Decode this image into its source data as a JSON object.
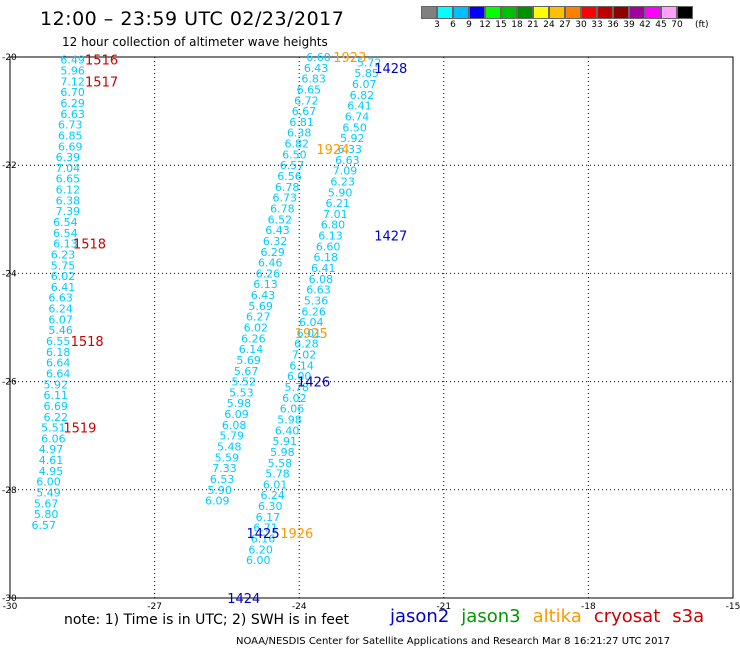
{
  "header": {
    "title": "12:00 – 23:59 UTC 02/23/2017",
    "subtitle": "12 hour collection of altimeter wave heights"
  },
  "colorbar": {
    "colors": [
      "#808080",
      "#00ffff",
      "#00bfff",
      "#0000ff",
      "#00ff00",
      "#00c000",
      "#009000",
      "#ffff00",
      "#ffc000",
      "#ff8000",
      "#ff0000",
      "#c00000",
      "#900000",
      "#a000a0",
      "#ff00ff",
      "#ffa0ff",
      "#000000"
    ],
    "labels": [
      "3",
      "6",
      "9",
      "12",
      "15",
      "18",
      "21",
      "24",
      "27",
      "30",
      "33",
      "36",
      "39",
      "42",
      "45",
      "70"
    ],
    "unit": "(ft)"
  },
  "note": "note: 1) Time is in UTC; 2) SWH is in feet",
  "credit": "NOAA/NESDIS Center for Satellite Applications and Research    Mar  8 16:21:27 UTC 2017",
  "legend": [
    {
      "name": "jason2",
      "color": "#0000cc"
    },
    {
      "name": "jason3",
      "color": "#009900"
    },
    {
      "name": "altika",
      "color": "#ff9900"
    },
    {
      "name": "cryosat",
      "color": "#cc0000"
    },
    {
      "name": "s3a",
      "color": "#cc0000"
    }
  ],
  "chart_data": {
    "type": "scatter",
    "title": "12:00 – 23:59 UTC 02/23/2017",
    "subtitle": "12 hour collection of altimeter wave heights",
    "xlim": [
      -30,
      -15
    ],
    "ylim": [
      -30,
      -20
    ],
    "xticks": [
      -30,
      -27,
      -24,
      -21,
      -18,
      -15
    ],
    "yticks": [
      -20,
      -22,
      -24,
      -26,
      -28,
      -30
    ],
    "grid": true,
    "point_color": "#00ccff",
    "tracks": [
      {
        "name": "cryosat track",
        "color": "#00ccff",
        "points": [
          {
            "x": -28.7,
            "y": -20.05,
            "v": "6.49"
          },
          {
            "x": -28.7,
            "y": -20.25,
            "v": "5.96"
          },
          {
            "x": -28.7,
            "y": -20.45,
            "v": "7.12"
          },
          {
            "x": -28.7,
            "y": -20.65,
            "v": "6.70"
          },
          {
            "x": -28.7,
            "y": -20.85,
            "v": "6.29"
          },
          {
            "x": -28.7,
            "y": -21.05,
            "v": "6.63"
          },
          {
            "x": -28.75,
            "y": -21.25,
            "v": "6.73"
          },
          {
            "x": -28.75,
            "y": -21.45,
            "v": "6.85"
          },
          {
            "x": -28.75,
            "y": -21.65,
            "v": "6.69"
          },
          {
            "x": -28.8,
            "y": -21.85,
            "v": "6.39"
          },
          {
            "x": -28.8,
            "y": -22.05,
            "v": "7.04"
          },
          {
            "x": -28.8,
            "y": -22.25,
            "v": "6.65"
          },
          {
            "x": -28.8,
            "y": -22.45,
            "v": "6.12"
          },
          {
            "x": -28.8,
            "y": -22.65,
            "v": "6.38"
          },
          {
            "x": -28.8,
            "y": -22.85,
            "v": "7.39"
          },
          {
            "x": -28.85,
            "y": -23.05,
            "v": "6.54"
          },
          {
            "x": -28.85,
            "y": -23.25,
            "v": "6.54"
          },
          {
            "x": -28.85,
            "y": -23.45,
            "v": "6.13"
          },
          {
            "x": -28.9,
            "y": -23.65,
            "v": "6.23"
          },
          {
            "x": -28.9,
            "y": -23.85,
            "v": "5.75"
          },
          {
            "x": -28.9,
            "y": -24.05,
            "v": "6.02"
          },
          {
            "x": -28.9,
            "y": -24.25,
            "v": "6.41"
          },
          {
            "x": -28.95,
            "y": -24.45,
            "v": "6.63"
          },
          {
            "x": -28.95,
            "y": -24.65,
            "v": "6.24"
          },
          {
            "x": -28.95,
            "y": -24.85,
            "v": "6.07"
          },
          {
            "x": -28.95,
            "y": -25.05,
            "v": "5.46"
          },
          {
            "x": -29.0,
            "y": -25.25,
            "v": "6.55"
          },
          {
            "x": -29.0,
            "y": -25.45,
            "v": "6.18"
          },
          {
            "x": -29.0,
            "y": -25.65,
            "v": "6.64"
          },
          {
            "x": -29.0,
            "y": -25.85,
            "v": "6.64"
          },
          {
            "x": -29.05,
            "y": -26.05,
            "v": "5.92"
          },
          {
            "x": -29.05,
            "y": -26.25,
            "v": "6.11"
          },
          {
            "x": -29.05,
            "y": -26.45,
            "v": "6.69"
          },
          {
            "x": -29.05,
            "y": -26.65,
            "v": "6.22"
          },
          {
            "x": -29.1,
            "y": -26.85,
            "v": "5.51"
          },
          {
            "x": -29.1,
            "y": -27.05,
            "v": "6.06"
          },
          {
            "x": -29.15,
            "y": -27.25,
            "v": "4.97"
          },
          {
            "x": -29.15,
            "y": -27.45,
            "v": "4.61"
          },
          {
            "x": -29.15,
            "y": -27.65,
            "v": "4.95"
          },
          {
            "x": -29.2,
            "y": -27.85,
            "v": "6.00"
          },
          {
            "x": -29.2,
            "y": -28.05,
            "v": "5.49"
          },
          {
            "x": -29.25,
            "y": -28.25,
            "v": "5.67"
          },
          {
            "x": -29.25,
            "y": -28.45,
            "v": "5.80"
          },
          {
            "x": -29.3,
            "y": -28.65,
            "v": "6.57"
          }
        ]
      },
      {
        "name": "altika track",
        "color": "#00ccff",
        "points": [
          {
            "x": -23.6,
            "y": -20.0,
            "v": "6.60"
          },
          {
            "x": -23.65,
            "y": -20.2,
            "v": "6.43"
          },
          {
            "x": -23.7,
            "y": -20.4,
            "v": "6.83"
          },
          {
            "x": -23.8,
            "y": -20.6,
            "v": "6.65"
          },
          {
            "x": -23.85,
            "y": -20.8,
            "v": "6.72"
          },
          {
            "x": -23.9,
            "y": -21.0,
            "v": "6.67"
          },
          {
            "x": -23.95,
            "y": -21.2,
            "v": "6.81"
          },
          {
            "x": -24.0,
            "y": -21.4,
            "v": "6.38"
          },
          {
            "x": -24.05,
            "y": -21.6,
            "v": "6.82"
          },
          {
            "x": -24.1,
            "y": -21.8,
            "v": "6.50"
          },
          {
            "x": -24.15,
            "y": -22.0,
            "v": "6.57"
          },
          {
            "x": -24.2,
            "y": -22.2,
            "v": "6.56"
          },
          {
            "x": -24.25,
            "y": -22.4,
            "v": "6.78"
          },
          {
            "x": -24.3,
            "y": -22.6,
            "v": "6.73"
          },
          {
            "x": -24.35,
            "y": -22.8,
            "v": "6.78"
          },
          {
            "x": -24.4,
            "y": -23.0,
            "v": "6.52"
          },
          {
            "x": -24.45,
            "y": -23.2,
            "v": "6.43"
          },
          {
            "x": -24.5,
            "y": -23.4,
            "v": "6.32"
          },
          {
            "x": -24.55,
            "y": -23.6,
            "v": "6.29"
          },
          {
            "x": -24.6,
            "y": -23.8,
            "v": "6.46"
          },
          {
            "x": -24.65,
            "y": -24.0,
            "v": "6.26"
          },
          {
            "x": -24.7,
            "y": -24.2,
            "v": "6.13"
          },
          {
            "x": -24.75,
            "y": -24.4,
            "v": "6.43"
          },
          {
            "x": -24.8,
            "y": -24.6,
            "v": "5.69"
          },
          {
            "x": -24.85,
            "y": -24.8,
            "v": "6.27"
          },
          {
            "x": -24.9,
            "y": -25.0,
            "v": "6.02"
          },
          {
            "x": -24.95,
            "y": -25.2,
            "v": "6.26"
          },
          {
            "x": -25.0,
            "y": -25.4,
            "v": "6.14"
          },
          {
            "x": -25.05,
            "y": -25.6,
            "v": "5.69"
          },
          {
            "x": -25.1,
            "y": -25.8,
            "v": "5.67"
          },
          {
            "x": -25.15,
            "y": -26.0,
            "v": "5.52"
          },
          {
            "x": -25.2,
            "y": -26.2,
            "v": "5.53"
          },
          {
            "x": -25.25,
            "y": -26.4,
            "v": "5.98"
          },
          {
            "x": -25.3,
            "y": -26.6,
            "v": "6.09"
          },
          {
            "x": -25.35,
            "y": -26.8,
            "v": "6.08"
          },
          {
            "x": -25.4,
            "y": -27.0,
            "v": "5.79"
          },
          {
            "x": -25.45,
            "y": -27.2,
            "v": "5.48"
          },
          {
            "x": -25.5,
            "y": -27.4,
            "v": "5.59"
          },
          {
            "x": -25.55,
            "y": -27.6,
            "v": "7.33"
          },
          {
            "x": -25.6,
            "y": -27.8,
            "v": "6.53"
          },
          {
            "x": -25.65,
            "y": -28.0,
            "v": "5.90"
          },
          {
            "x": -25.7,
            "y": -28.2,
            "v": "6.09"
          }
        ]
      },
      {
        "name": "jason2 track",
        "color": "#00ccff",
        "points": [
          {
            "x": -22.55,
            "y": -20.1,
            "v": "5.72"
          },
          {
            "x": -22.6,
            "y": -20.3,
            "v": "5.85"
          },
          {
            "x": -22.65,
            "y": -20.5,
            "v": "6.07"
          },
          {
            "x": -22.7,
            "y": -20.7,
            "v": "6.82"
          },
          {
            "x": -22.75,
            "y": -20.9,
            "v": "6.41"
          },
          {
            "x": -22.8,
            "y": -21.1,
            "v": "6.74"
          },
          {
            "x": -22.85,
            "y": -21.3,
            "v": "6.50"
          },
          {
            "x": -22.9,
            "y": -21.5,
            "v": "5.92"
          },
          {
            "x": -22.95,
            "y": -21.7,
            "v": "6.33"
          },
          {
            "x": -23.0,
            "y": -21.9,
            "v": "6.63"
          },
          {
            "x": -23.05,
            "y": -22.1,
            "v": "7.09"
          },
          {
            "x": -23.1,
            "y": -22.3,
            "v": "6.23"
          },
          {
            "x": -23.15,
            "y": -22.5,
            "v": "5.90"
          },
          {
            "x": -23.2,
            "y": -22.7,
            "v": "6.21"
          },
          {
            "x": -23.25,
            "y": -22.9,
            "v": "7.01"
          },
          {
            "x": -23.3,
            "y": -23.1,
            "v": "6.80"
          },
          {
            "x": -23.35,
            "y": -23.3,
            "v": "6.13"
          },
          {
            "x": -23.4,
            "y": -23.5,
            "v": "6.60"
          },
          {
            "x": -23.45,
            "y": -23.7,
            "v": "6.18"
          },
          {
            "x": -23.5,
            "y": -23.9,
            "v": "6.41"
          },
          {
            "x": -23.55,
            "y": -24.1,
            "v": "6.08"
          },
          {
            "x": -23.6,
            "y": -24.3,
            "v": "6.63"
          },
          {
            "x": -23.65,
            "y": -24.5,
            "v": "5.36"
          },
          {
            "x": -23.7,
            "y": -24.7,
            "v": "6.26"
          },
          {
            "x": -23.75,
            "y": -24.9,
            "v": "6.04"
          },
          {
            "x": -23.8,
            "y": -25.1,
            "v": "6.01"
          },
          {
            "x": -23.85,
            "y": -25.3,
            "v": "6.28"
          },
          {
            "x": -23.9,
            "y": -25.5,
            "v": "7.02"
          },
          {
            "x": -23.95,
            "y": -25.7,
            "v": "6.14"
          },
          {
            "x": -24.0,
            "y": -25.9,
            "v": "6.00"
          },
          {
            "x": -24.05,
            "y": -26.1,
            "v": "5.78"
          },
          {
            "x": -24.1,
            "y": -26.3,
            "v": "6.02"
          },
          {
            "x": -24.15,
            "y": -26.5,
            "v": "6.06"
          },
          {
            "x": -24.2,
            "y": -26.7,
            "v": "5.98"
          },
          {
            "x": -24.25,
            "y": -26.9,
            "v": "6.40"
          },
          {
            "x": -24.3,
            "y": -27.1,
            "v": "5.91"
          },
          {
            "x": -24.35,
            "y": -27.3,
            "v": "5.98"
          },
          {
            "x": -24.4,
            "y": -27.5,
            "v": "5.58"
          },
          {
            "x": -24.45,
            "y": -27.7,
            "v": "5.78"
          },
          {
            "x": -24.5,
            "y": -27.9,
            "v": "6.01"
          },
          {
            "x": -24.55,
            "y": -28.1,
            "v": "6.24"
          },
          {
            "x": -24.6,
            "y": -28.3,
            "v": "6.30"
          },
          {
            "x": -24.65,
            "y": -28.5,
            "v": "6.17"
          },
          {
            "x": -24.7,
            "y": -28.7,
            "v": "6.71"
          },
          {
            "x": -24.75,
            "y": -28.9,
            "v": "6.16"
          },
          {
            "x": -24.8,
            "y": -29.1,
            "v": "6.20"
          },
          {
            "x": -24.85,
            "y": -29.3,
            "v": "6.00"
          }
        ]
      }
    ],
    "pass_labels": [
      {
        "text": "1516",
        "satellite": "cryosat",
        "x": -28.1,
        "y": -20.05
      },
      {
        "text": "1517",
        "satellite": "cryosat",
        "x": -28.1,
        "y": -20.45
      },
      {
        "text": "1518",
        "satellite": "cryosat",
        "x": -28.35,
        "y": -23.45
      },
      {
        "text": "1518",
        "satellite": "cryosat",
        "x": -28.4,
        "y": -25.25
      },
      {
        "text": "1519",
        "satellite": "cryosat",
        "x": -28.55,
        "y": -26.85
      },
      {
        "text": "1923",
        "satellite": "altika",
        "x": -22.95,
        "y": -20.0
      },
      {
        "text": "1924",
        "satellite": "altika",
        "x": -23.3,
        "y": -21.7
      },
      {
        "text": "1925",
        "satellite": "altika",
        "x": -23.75,
        "y": -25.1
      },
      {
        "text": "1926",
        "satellite": "altika",
        "x": -24.05,
        "y": -28.8
      },
      {
        "text": "1428",
        "satellite": "jason2",
        "x": -22.1,
        "y": -20.2
      },
      {
        "text": "1427",
        "satellite": "jason2",
        "x": -22.1,
        "y": -23.3
      },
      {
        "text": "1426",
        "satellite": "jason2",
        "x": -23.7,
        "y": -26.0
      },
      {
        "text": "1425",
        "satellite": "jason2",
        "x": -24.75,
        "y": -28.8
      },
      {
        "text": "1424",
        "satellite": "jason2",
        "x": -25.15,
        "y": -30.0
      }
    ]
  }
}
